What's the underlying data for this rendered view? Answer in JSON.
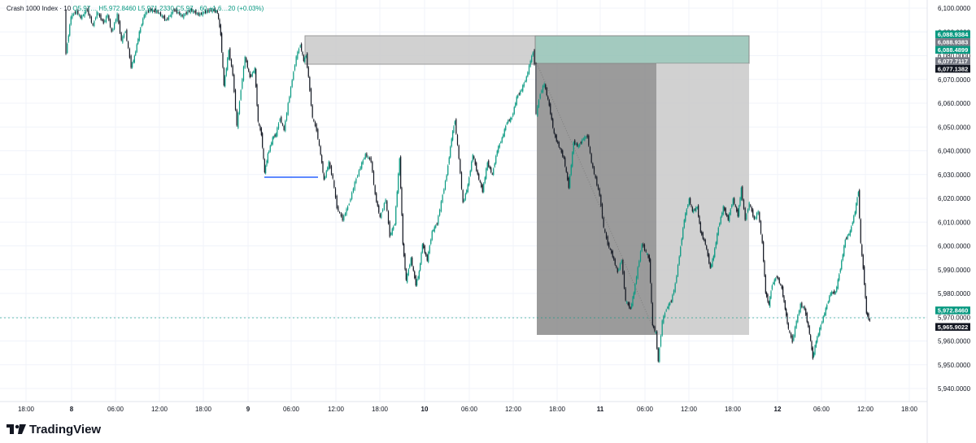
{
  "header": {
    "symbol": "Crash 1000 Index · 10",
    "ohlc_text": "O5,97… H5,972.8460 L5,971.2330 C5,97…60 +1.6…20 (+0.03%)"
  },
  "price_axis": {
    "labels": [
      "6,100.0000",
      "6,090.0000",
      "6,080.0000",
      "6,070.0000",
      "6,060.0000",
      "6,050.0000",
      "6,040.0000",
      "6,030.0000",
      "6,020.0000",
      "6,010.0000",
      "6,000.0000",
      "5,990.0000",
      "5,980.0000",
      "5,970.0000",
      "5,960.0000",
      "5,950.0000",
      "5,940.0000"
    ],
    "badges": [
      {
        "text": "6,088.9384",
        "color": "#089981"
      },
      {
        "text": "6,088.9383",
        "color": "#787b86"
      },
      {
        "text": "6,088.4899",
        "color": "#089981"
      },
      {
        "text": "6,077.7117",
        "color": "#787b86"
      },
      {
        "text": "6,077.1382",
        "color": "#131722"
      },
      {
        "text": "5,972.8460",
        "color": "#089981"
      },
      {
        "text": "5,965.9022",
        "color": "#131722"
      }
    ]
  },
  "time_axis": {
    "labels": [
      "18:00",
      "8",
      "06:00",
      "12:00",
      "18:00",
      "9",
      "06:00",
      "12:00",
      "18:00",
      "10",
      "06:00",
      "12:00",
      "18:00",
      "11",
      "06:00",
      "12:00",
      "18:00",
      "12",
      "06:00",
      "12:00",
      "18:00"
    ]
  },
  "colors": {
    "up": "#089981",
    "down": "#131722",
    "grid": "#f0f3fa",
    "box_gray": "#c9c9c9",
    "box_dark": "#8a8a8a",
    "target": "#93c1b4",
    "level_line": "#2962ff"
  },
  "icons": {
    "logo": "tradingview-logo-icon"
  },
  "brand": "TradingView"
}
